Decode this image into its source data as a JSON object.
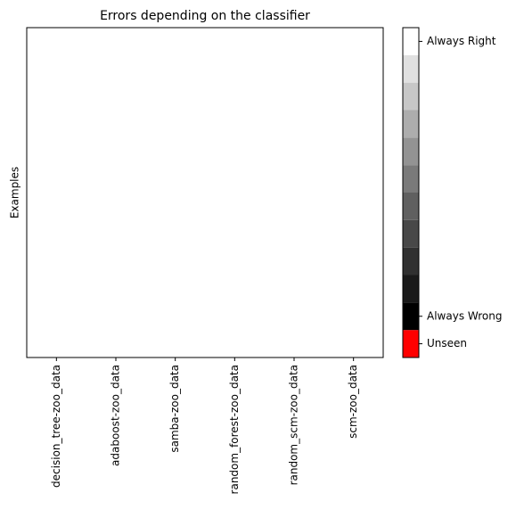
{
  "chart_data": {
    "type": "heatmap",
    "title": "Errors depending on the classifier",
    "y_label": "Examples",
    "categories": [
      "decision_tree-zoo_data",
      "adaboost-zoo_data",
      "samba-zoo_data",
      "random_forest-zoo_data",
      "random_scm-zoo_data",
      "scm-zoo_data"
    ],
    "colorbar": {
      "colors": [
        "#ff0000",
        "#000000",
        "#1a1a1a",
        "#303030",
        "#484848",
        "#606060",
        "#7a7a7a",
        "#939393",
        "#adadad",
        "#c7c7c7",
        "#e0e0e0",
        "#ffffff"
      ],
      "lim": [
        -0.5,
        11.5
      ],
      "ticks": [
        {
          "value": 11,
          "label": "Always Right"
        },
        {
          "value": 1,
          "label": "Always Wrong"
        },
        {
          "value": 0,
          "label": "Unseen"
        }
      ]
    }
  }
}
